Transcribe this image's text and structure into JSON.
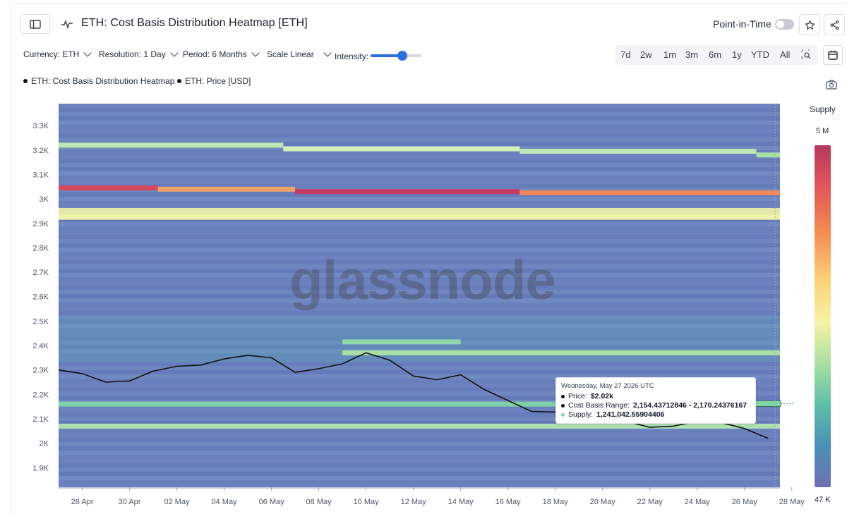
{
  "header": {
    "title": "ETH: Cost Basis Distribution Heatmap [ETH]",
    "point_in_time_label": "Point-in-Time",
    "point_in_time_enabled": false
  },
  "toolbar": {
    "currency": "Currency: ETH",
    "resolution": "Resolution: 1 Day",
    "period": "Period: 6 Months",
    "scale": "Scale Linear",
    "intensity_label": "Intensity:",
    "intensity_value": 0.62,
    "ranges": [
      "7d",
      "2w",
      "1m",
      "3m",
      "6m",
      "1y",
      "YTD",
      "All"
    ]
  },
  "legend": {
    "items": [
      "ETH: Cost Basis Distribution Heatmap",
      "ETH: Price [USD]"
    ]
  },
  "watermark": "glassnode",
  "colorbar": {
    "title": "Supply",
    "max_label": "5 M",
    "min_label": "47 K",
    "colors": [
      "#b7375f",
      "#e0565a",
      "#f38a4f",
      "#fdd37a",
      "#f5f3a5",
      "#a8dfa3",
      "#5cbfa8",
      "#4a8fb8",
      "#7070b5"
    ]
  },
  "tooltip": {
    "date": "Wednesday, May 27 2026 UTC",
    "price_label": "Price:",
    "price_value": "$2.02k",
    "range_label": "Cost Basis Range:",
    "range_value": "2,154.43712846 - 2,170.24376167",
    "supply_label": "Supply:",
    "supply_value": "1,241,042.55904406"
  },
  "chart_data": {
    "type": "heatmap",
    "title": "ETH: Cost Basis Distribution Heatmap [ETH]",
    "y_ticks": [
      "3.3K",
      "3.2K",
      "3.1K",
      "3K",
      "2.9K",
      "2.8K",
      "2.7K",
      "2.6K",
      "2.5K",
      "2.4K",
      "2.3K",
      "2.2K",
      "2.1K",
      "2K",
      "1.9K"
    ],
    "x_ticks": [
      "28 Apr",
      "30 Apr",
      "02 May",
      "04 May",
      "06 May",
      "08 May",
      "10 May",
      "12 May",
      "14 May",
      "16 May",
      "18 May",
      "20 May",
      "22 May",
      "24 May",
      "26 May",
      "28 May"
    ],
    "ylim": [
      1820,
      3390
    ],
    "background_color": "#6a7fbc",
    "bands": [
      {
        "start": 0,
        "end": 9.5,
        "y": 3220,
        "color": "#bfe9b4"
      },
      {
        "start": 9.5,
        "end": 19.5,
        "y": 3205,
        "color": "#d5f0bb"
      },
      {
        "start": 19.5,
        "end": 29.5,
        "y": 3195,
        "color": "#bfe9b4"
      },
      {
        "start": 29.5,
        "end": 30.5,
        "y": 3180,
        "color": "#a8dfa3"
      },
      {
        "start": 0,
        "end": 4.2,
        "y": 3045,
        "color": "#d9485d"
      },
      {
        "start": 4.2,
        "end": 10,
        "y": 3040,
        "color": "#f1a366"
      },
      {
        "start": 10,
        "end": 19.5,
        "y": 3030,
        "color": "#c83c63"
      },
      {
        "start": 19.5,
        "end": 30.5,
        "y": 3025,
        "color": "#f18a5d"
      },
      {
        "start": 0,
        "end": 30.5,
        "y": 2925,
        "color": "#f3f4a6"
      },
      {
        "start": 0,
        "end": 30.5,
        "y": 2070,
        "color": "#aee0b0"
      },
      {
        "start": 0,
        "end": 30.5,
        "y": 2160,
        "color": "#7fcfa8"
      },
      {
        "start": 12,
        "end": 17,
        "y": 2415,
        "color": "#8fd6a8"
      },
      {
        "start": 12,
        "end": 30.5,
        "y": 2370,
        "color": "#a8dfa3"
      }
    ],
    "series": [
      {
        "name": "ETH: Price [USD]",
        "dates": [
          "27 Apr",
          "28 Apr",
          "29 Apr",
          "30 Apr",
          "01 May",
          "02 May",
          "03 May",
          "04 May",
          "05 May",
          "06 May",
          "07 May",
          "08 May",
          "09 May",
          "10 May",
          "11 May",
          "12 May",
          "13 May",
          "14 May",
          "15 May",
          "16 May",
          "17 May",
          "18 May",
          "19 May",
          "20 May",
          "21 May",
          "22 May",
          "23 May",
          "24 May",
          "25 May",
          "26 May",
          "27 May"
        ],
        "values": [
          2300,
          2285,
          2250,
          2255,
          2295,
          2315,
          2320,
          2345,
          2360,
          2350,
          2290,
          2305,
          2325,
          2370,
          2340,
          2275,
          2260,
          2280,
          2220,
          2175,
          2130,
          2128,
          2110,
          2095,
          2090,
          2065,
          2070,
          2090,
          2085,
          2060,
          2020
        ]
      }
    ]
  }
}
